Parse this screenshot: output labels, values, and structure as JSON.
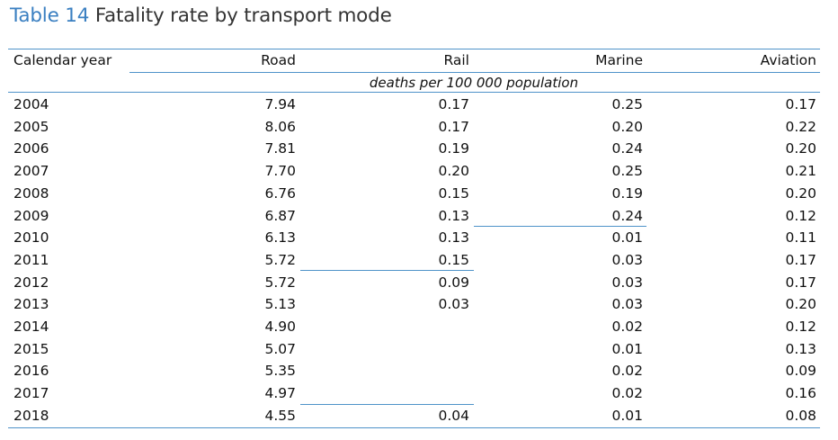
{
  "title": {
    "prefix": "Table 14",
    "text": "Fatality rate by transport mode"
  },
  "header": {
    "year": "Calendar year",
    "road": "Road",
    "rail": "Rail",
    "marine": "Marine",
    "aviation": "Aviation",
    "units": "deaths per 100 000 population"
  },
  "rows": [
    {
      "year": "2004",
      "road": "7.94",
      "rail": "0.17",
      "marine": "0.25",
      "aviation": "0.17"
    },
    {
      "year": "2005",
      "road": "8.06",
      "rail": "0.17",
      "marine": "0.20",
      "aviation": "0.22"
    },
    {
      "year": "2006",
      "road": "7.81",
      "rail": "0.19",
      "marine": "0.24",
      "aviation": "0.20"
    },
    {
      "year": "2007",
      "road": "7.70",
      "rail": "0.20",
      "marine": "0.25",
      "aviation": "0.21"
    },
    {
      "year": "2008",
      "road": "6.76",
      "rail": "0.15",
      "marine": "0.19",
      "aviation": "0.20"
    },
    {
      "year": "2009",
      "road": "6.87",
      "rail": "0.13",
      "marine": "0.24",
      "aviation": "0.12"
    },
    {
      "year": "2010",
      "road": "6.13",
      "rail": "0.13",
      "marine": "0.01",
      "aviation": "0.11"
    },
    {
      "year": "2011",
      "road": "5.72",
      "rail": "0.15",
      "marine": "0.03",
      "aviation": "0.17"
    },
    {
      "year": "2012",
      "road": "5.72",
      "rail": "0.09",
      "marine": "0.03",
      "aviation": "0.17"
    },
    {
      "year": "2013",
      "road": "5.13",
      "rail": "0.03",
      "marine": "0.03",
      "aviation": "0.20"
    },
    {
      "year": "2014",
      "road": "4.90",
      "rail": "",
      "marine": "0.02",
      "aviation": "0.12"
    },
    {
      "year": "2015",
      "road": "5.07",
      "rail": "",
      "marine": "0.01",
      "aviation": "0.13"
    },
    {
      "year": "2016",
      "road": "5.35",
      "rail": "",
      "marine": "0.02",
      "aviation": "0.09"
    },
    {
      "year": "2017",
      "road": "4.97",
      "rail": "",
      "marine": "0.02",
      "aviation": "0.16"
    },
    {
      "year": "2018",
      "road": "4.55",
      "rail": "0.04",
      "marine": "0.01",
      "aviation": "0.08"
    }
  ]
}
